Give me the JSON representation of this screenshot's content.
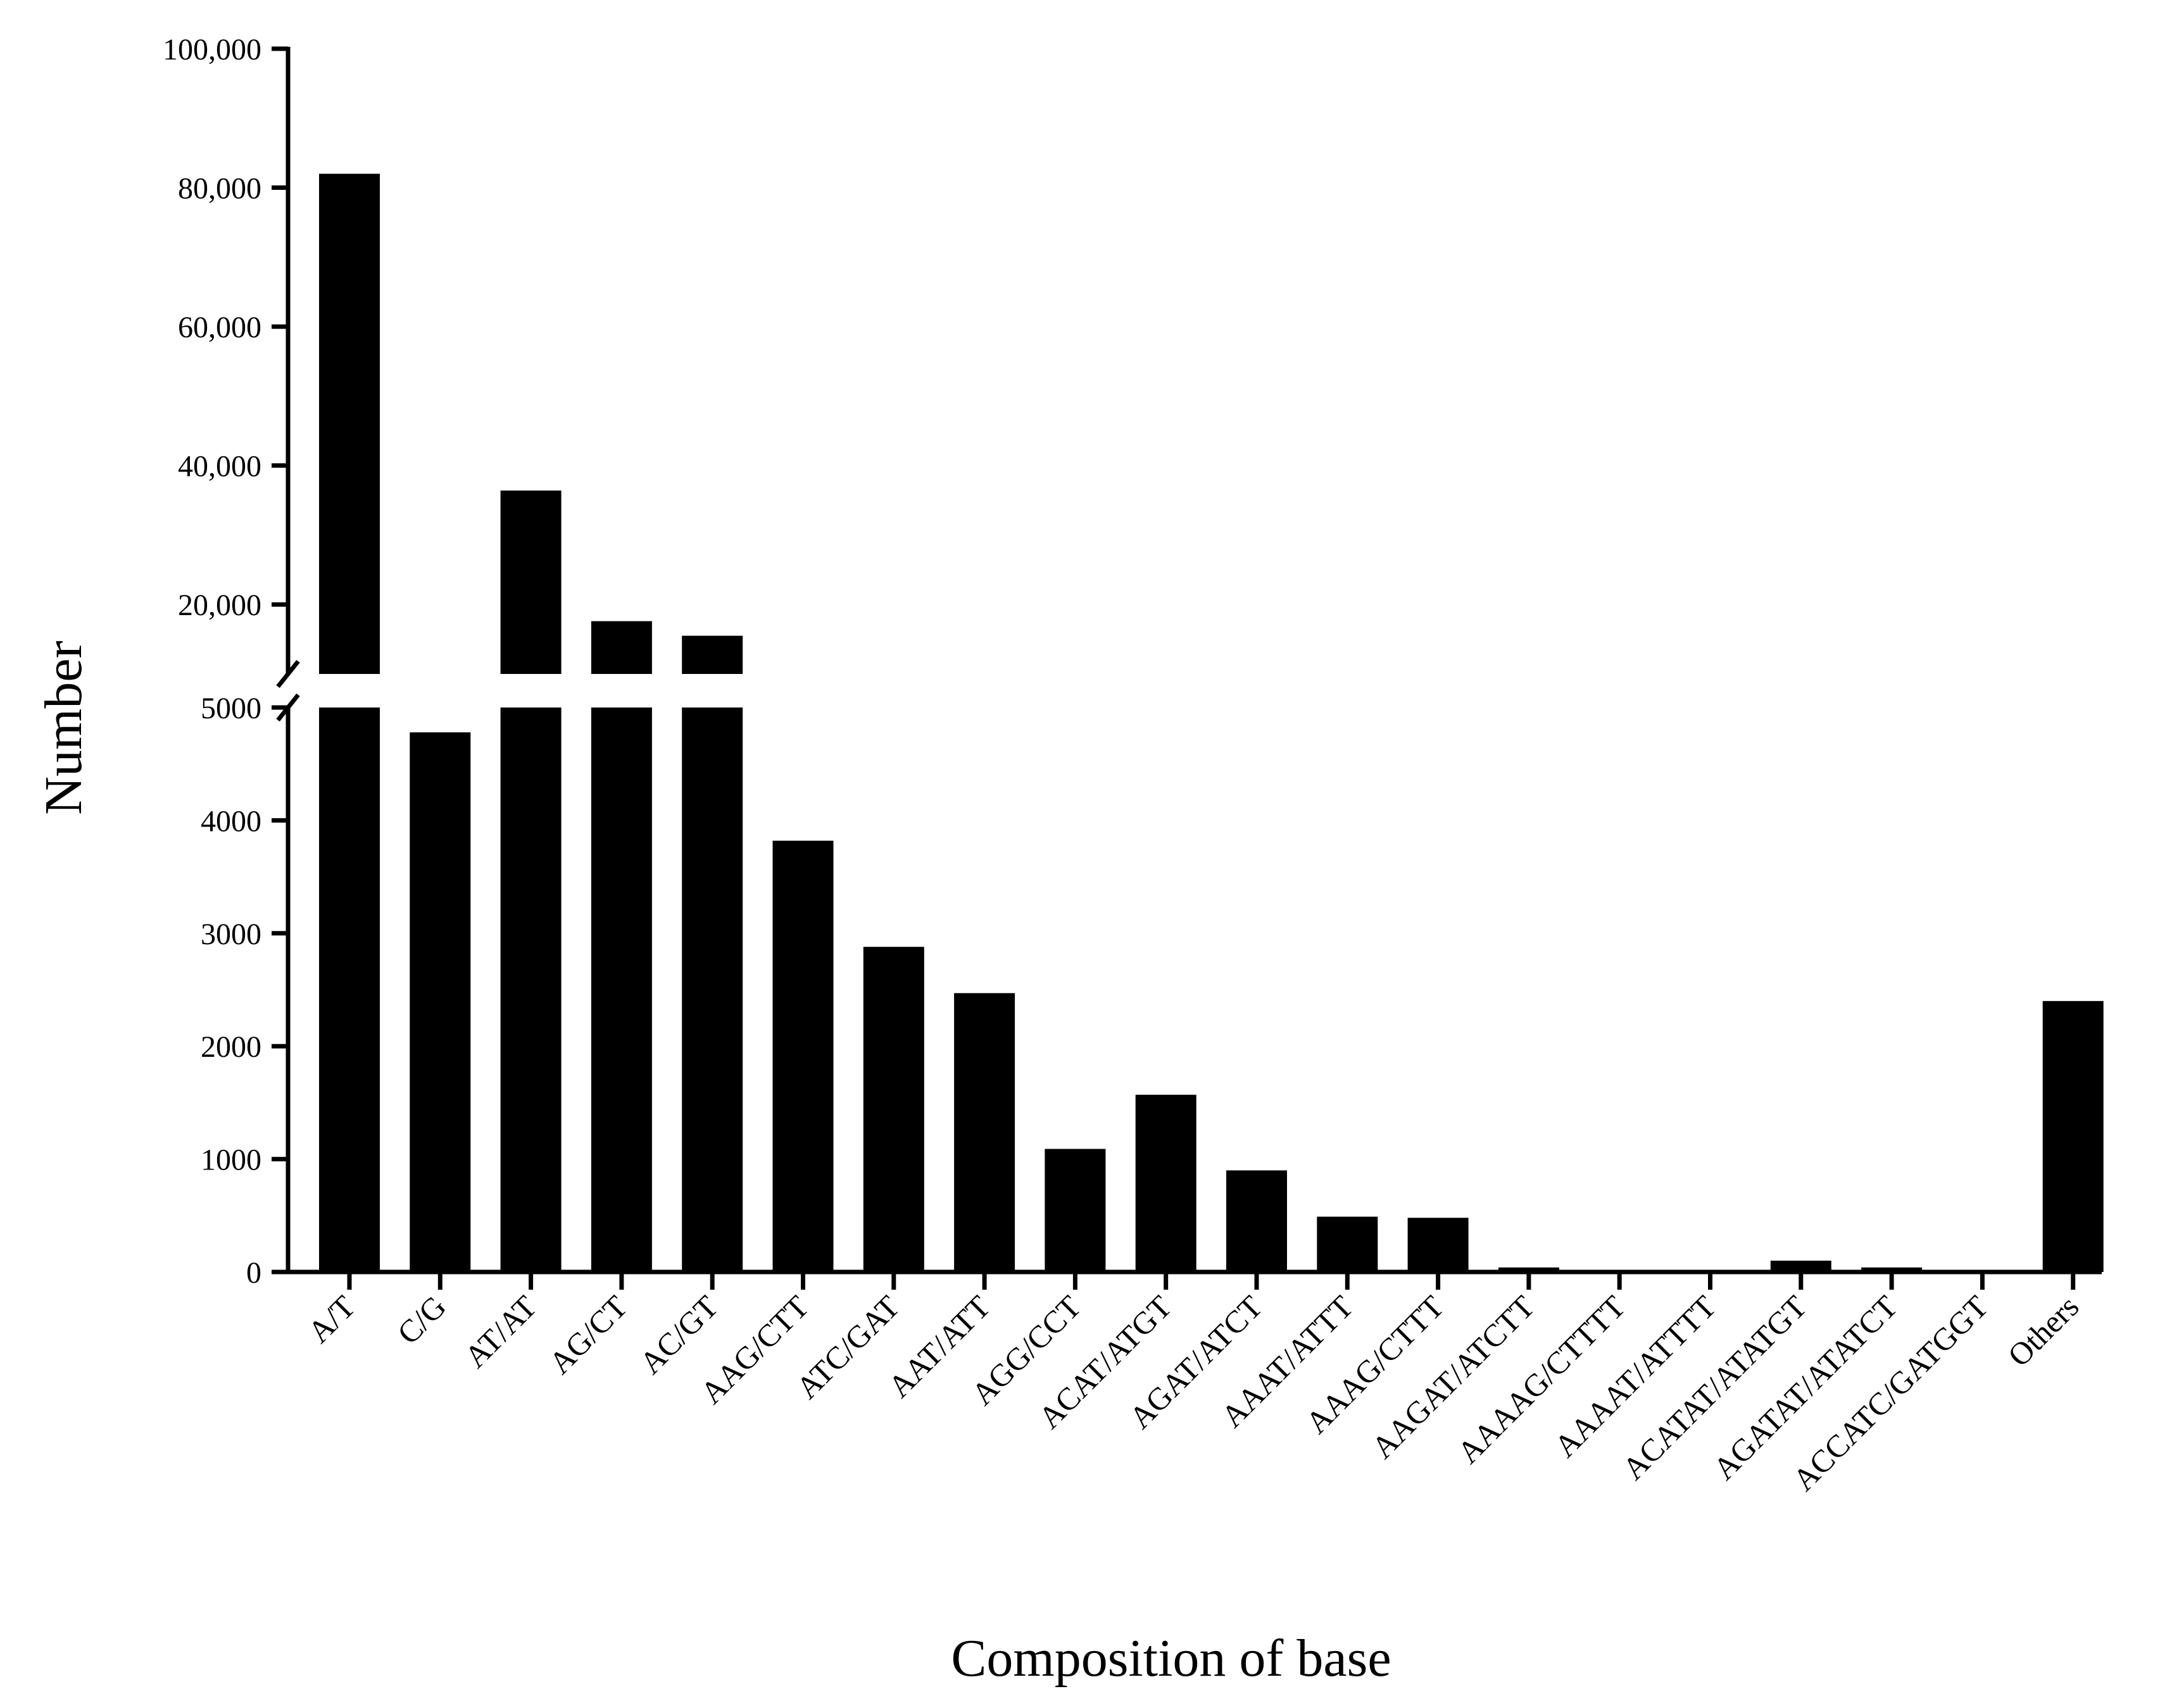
{
  "chart_data": {
    "type": "bar",
    "title": "",
    "xlabel": "Composition of base",
    "ylabel": "Number",
    "y_axis_break": true,
    "ylim_lower": [
      0,
      5000
    ],
    "ylim_upper": [
      10000,
      100000
    ],
    "yticks_lower": [
      "0",
      "1000",
      "2000",
      "3000",
      "4000",
      "5000"
    ],
    "yticks_upper": [
      "20,000",
      "40,000",
      "60,000",
      "80,000",
      "100,000"
    ],
    "categories": [
      "A/T",
      "C/G",
      "AT/AT",
      "AG/CT",
      "AC/GT",
      "AAG/CTT",
      "ATC/GAT",
      "AAT/ATT",
      "AGG/CCT",
      "ACAT/ATGT",
      "AGAT/ATCT",
      "AAAT/ATTT",
      "AAAG/CTTT",
      "AAGAT/ATCTT",
      "AAAAG/CTTTT",
      "AAAAT/ATTTT",
      "ACATAT/ATATGT",
      "AGATAT/ATATCT",
      "ACCATC/GATGGT",
      "Others"
    ],
    "values": [
      82000,
      4780,
      36400,
      17600,
      15500,
      3820,
      2880,
      2470,
      1090,
      1570,
      900,
      490,
      480,
      40,
      15,
      15,
      100,
      40,
      15,
      2400
    ],
    "bar_color": "#000000",
    "grid": false,
    "legend": "none"
  }
}
